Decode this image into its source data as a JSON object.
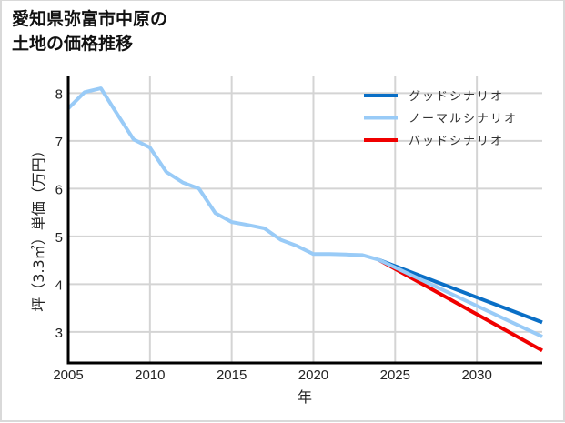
{
  "title": "愛知県弥富市中原の\n土地の価格推移",
  "colors": {
    "good": "#0a6fc6",
    "normal": "#99cbf7",
    "bad": "#f00000",
    "grid": "#d4d4d4",
    "axis": "#000000"
  },
  "chart_data": {
    "type": "line",
    "title": "愛知県弥富市中原の土地の価格推移",
    "xlabel": "年",
    "ylabel": "坪（3.3㎡）単価（万円）",
    "xlim": [
      2005,
      2034
    ],
    "ylim": [
      2.35,
      8.35
    ],
    "xticks": [
      2005,
      2010,
      2015,
      2020,
      2025,
      2030
    ],
    "yticks": [
      3,
      4,
      5,
      6,
      7,
      8
    ],
    "grid": true,
    "legend_position": "upper right",
    "legend": [
      "グッドシナリオ",
      "ノーマルシナリオ",
      "バッドシナリオ"
    ],
    "series": [
      {
        "name": "ノーマルシナリオ",
        "color": "#99cbf7",
        "x": [
          2005,
          2006,
          2007,
          2008,
          2009,
          2010,
          2011,
          2012,
          2013,
          2014,
          2015,
          2016,
          2017,
          2018,
          2019,
          2020,
          2021,
          2022,
          2023,
          2024,
          2034
        ],
        "values": [
          7.68,
          8.02,
          8.1,
          7.56,
          7.03,
          6.86,
          6.35,
          6.13,
          6.0,
          5.49,
          5.3,
          5.24,
          5.17,
          4.93,
          4.8,
          4.63,
          4.63,
          4.62,
          4.61,
          4.51,
          2.9
        ]
      },
      {
        "name": "グッドシナリオ",
        "color": "#0a6fc6",
        "x": [
          2024,
          2034
        ],
        "values": [
          4.51,
          3.2
        ]
      },
      {
        "name": "バッドシナリオ",
        "color": "#f00000",
        "x": [
          2024,
          2034
        ],
        "values": [
          4.51,
          2.61
        ]
      }
    ]
  }
}
